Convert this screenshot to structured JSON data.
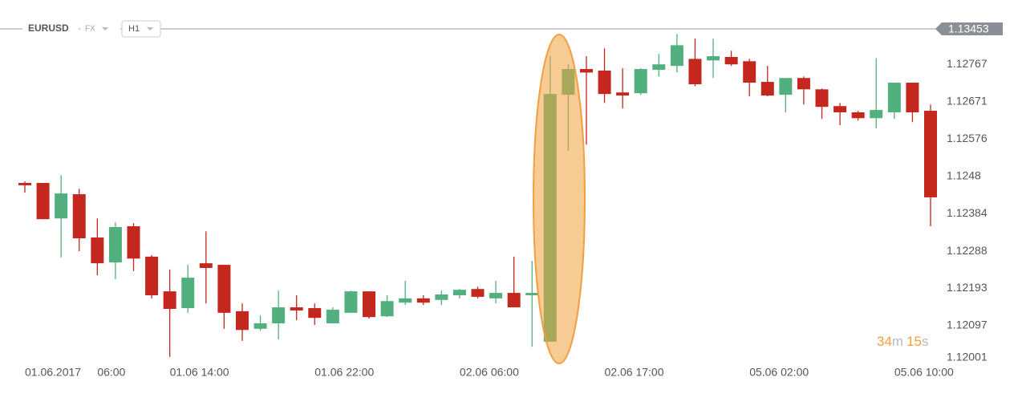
{
  "chart_data": {
    "type": "candlestick",
    "symbol": "EURUSD",
    "market": "FX",
    "timeframe": "H1",
    "price_tag": "1.13453",
    "countdown": [
      {
        "value": "34",
        "unit": "m"
      },
      {
        "value": "15",
        "unit": "s"
      }
    ],
    "categories": [
      "01.06.2017",
      null,
      null,
      null,
      "06:00",
      null,
      null,
      null,
      "01.06  14:00",
      null,
      null,
      null,
      null,
      null,
      null,
      null,
      "01.06  22:00",
      null,
      null,
      null,
      null,
      null,
      null,
      null,
      "02.06  06:00",
      null,
      null,
      null,
      null,
      null,
      null,
      null,
      "02.06  17:00",
      null,
      null,
      null,
      null,
      null,
      null,
      null,
      "05.06  02:00",
      null,
      null,
      null,
      null,
      null,
      null,
      null,
      "05.06  10:00",
      null,
      null
    ],
    "open": [
      1.12463,
      1.12463,
      1.12372,
      1.12434,
      1.12323,
      1.12259,
      1.12352,
      1.12274,
      1.12185,
      1.12142,
      1.12257,
      1.12253,
      1.12134,
      1.12089,
      1.12103,
      1.12144,
      1.12142,
      1.12103,
      1.1213,
      1.12185,
      1.12121,
      1.12156,
      1.12167,
      1.12163,
      1.12175,
      1.12191,
      1.12167,
      1.12181,
      1.12175,
      1.12056,
      1.12689,
      1.12755,
      1.12751,
      1.12695,
      1.12693,
      1.12753,
      1.12763,
      1.12781,
      1.12777,
      1.12786,
      1.12775,
      1.12722,
      1.12689,
      1.12732,
      1.12703,
      1.1266,
      1.12644,
      1.12629,
      1.12644,
      1.1272,
      1.12648
    ],
    "high": [
      1.12467,
      1.12463,
      1.12483,
      1.12448,
      1.12372,
      1.12362,
      1.1236,
      1.12278,
      1.12241,
      1.12253,
      1.12339,
      1.12253,
      1.12154,
      1.12123,
      1.12187,
      1.12175,
      1.12154,
      1.12144,
      1.12187,
      1.12185,
      1.12175,
      1.12212,
      1.12175,
      1.12187,
      1.12191,
      1.12197,
      1.12212,
      1.12274,
      1.12263,
      1.12788,
      1.12767,
      1.12788,
      1.12808,
      1.12757,
      1.12757,
      1.12794,
      1.12845,
      1.12833,
      1.12833,
      1.12802,
      1.12781,
      1.12763,
      1.12732,
      1.12736,
      1.12705,
      1.12668,
      1.12648,
      1.12783,
      1.1272,
      1.1272,
      1.12664
    ],
    "low": [
      1.12438,
      1.1237,
      1.12272,
      1.12288,
      1.12226,
      1.12216,
      1.12237,
      1.12167,
      1.12017,
      1.1213,
      1.12154,
      1.12089,
      1.12058,
      1.12084,
      1.12062,
      1.12111,
      1.12099,
      1.12103,
      1.1213,
      1.12115,
      1.12119,
      1.1215,
      1.1215,
      1.1215,
      1.12167,
      1.12167,
      1.12154,
      1.12144,
      1.12043,
      1.12056,
      1.12545,
      1.12561,
      1.12668,
      1.12654,
      1.12689,
      1.12736,
      1.12746,
      1.12711,
      1.12732,
      1.12763,
      1.12685,
      1.12685,
      1.12644,
      1.12664,
      1.12627,
      1.12611,
      1.12623,
      1.12603,
      1.12627,
      1.12619,
      1.12352
    ],
    "close": [
      1.12457,
      1.1237,
      1.12436,
      1.12321,
      1.12257,
      1.1235,
      1.12269,
      1.12175,
      1.1214,
      1.1222,
      1.12245,
      1.1213,
      1.12086,
      1.12103,
      1.12144,
      1.12136,
      1.12117,
      1.12138,
      1.12185,
      1.12119,
      1.1216,
      1.12167,
      1.12156,
      1.12177,
      1.12189,
      1.12171,
      1.12181,
      1.12144,
      1.12181,
      1.12691,
      1.12755,
      1.12746,
      1.12691,
      1.12687,
      1.12755,
      1.12767,
      1.12816,
      1.12716,
      1.12788,
      1.12767,
      1.1272,
      1.12687,
      1.12732,
      1.12703,
      1.12658,
      1.12644,
      1.12629,
      1.1265,
      1.1272,
      1.12644,
      1.12426
    ],
    "up_color": "#52b07e",
    "down_color": "#c4271d",
    "ylim": [
      1.11996,
      1.1286
    ],
    "yticks": [
      1.12001,
      1.12097,
      1.12193,
      1.12288,
      1.12384,
      1.1248,
      1.12576,
      1.12671,
      1.12767
    ],
    "grid": false
  }
}
